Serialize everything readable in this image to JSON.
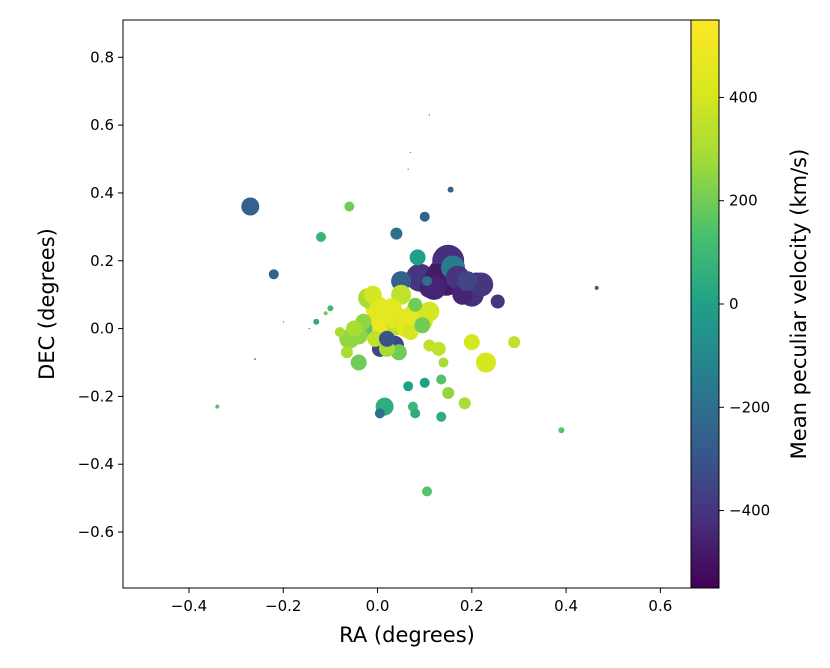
{
  "chart_data": {
    "type": "scatter",
    "title": "",
    "xlabel": "RA (degrees)",
    "ylabel": "DEC (degrees)",
    "xlim": [
      -0.54,
      0.665
    ],
    "ylim": [
      -0.765,
      0.91
    ],
    "xticks": [
      -0.4,
      -0.2,
      0.0,
      0.2,
      0.4,
      0.6
    ],
    "xtick_labels": [
      "−0.4",
      "−0.2",
      "0.0",
      "0.2",
      "0.4",
      "0.6"
    ],
    "yticks": [
      -0.6,
      -0.4,
      -0.2,
      0.0,
      0.2,
      0.4,
      0.6,
      0.8
    ],
    "ytick_labels": [
      "−0.6",
      "−0.4",
      "−0.2",
      "0.0",
      "0.2",
      "0.4",
      "0.6",
      "0.8"
    ],
    "grid": false,
    "colorbar": {
      "label": "Mean peculiar velocity (km/s)",
      "colormap": "viridis",
      "range": [
        -550,
        550
      ],
      "ticks": [
        -400,
        -200,
        0,
        200,
        400
      ],
      "tick_labels": [
        "−400",
        "−200",
        "0",
        "200",
        "400"
      ]
    },
    "series": [
      {
        "x": [
          -0.27,
          -0.22,
          -0.34,
          -0.26,
          -0.12,
          -0.06,
          -0.1,
          -0.11,
          -0.13,
          -0.08,
          -0.06,
          -0.065,
          -0.04,
          -0.03,
          -0.02,
          -0.01,
          0.0,
          0.005,
          0.01,
          0.02,
          0.03,
          0.035,
          0.04,
          0.05,
          0.06,
          0.07,
          0.08,
          0.085,
          0.09,
          0.1,
          0.11,
          0.12,
          0.13,
          0.14,
          0.145,
          0.15,
          0.16,
          0.17,
          0.18,
          0.19,
          0.2,
          0.21,
          0.22,
          0.23,
          0.255,
          0.29,
          0.1,
          0.04,
          0.105,
          0.155,
          0.465,
          0.065,
          0.1,
          0.135,
          0.075,
          0.08,
          0.005,
          0.015,
          0.135,
          0.15,
          0.185,
          0.105,
          0.39,
          0.11,
          0.13,
          0.14,
          0.2,
          0.045,
          0.035,
          0.02,
          0.0,
          0.05,
          0.08,
          0.095,
          0.11,
          -0.005,
          0.03,
          -0.05,
          0.055,
          0.06,
          0.02,
          -0.03,
          -0.04,
          0.01
        ],
        "y": [
          0.36,
          0.16,
          -0.23,
          -0.09,
          0.27,
          0.36,
          0.06,
          0.045,
          0.02,
          -0.01,
          -0.03,
          -0.07,
          -0.1,
          0.02,
          0.09,
          0.1,
          0.06,
          -0.06,
          0.0,
          0.02,
          0.04,
          -0.05,
          0.01,
          0.14,
          0.0,
          -0.01,
          0.07,
          0.21,
          0.15,
          0.02,
          0.12,
          0.12,
          0.15,
          0.16,
          0.15,
          0.2,
          0.18,
          0.15,
          0.1,
          0.14,
          0.1,
          0.13,
          0.13,
          -0.1,
          0.08,
          -0.04,
          0.33,
          0.28,
          0.14,
          0.41,
          0.12,
          -0.17,
          -0.16,
          -0.15,
          -0.23,
          -0.25,
          -0.25,
          -0.23,
          -0.26,
          -0.19,
          -0.22,
          -0.48,
          -0.3,
          -0.05,
          -0.06,
          -0.1,
          -0.04,
          -0.07,
          0.03,
          -0.06,
          0.06,
          0.1,
          0.05,
          0.01,
          0.05,
          -0.03,
          0.06,
          0.0,
          0.02,
          0.03,
          -0.03,
          0.0,
          -0.02,
          0.04
        ],
        "velocity": [
          -250,
          -250,
          150,
          50,
          80,
          200,
          100,
          200,
          50,
          300,
          250,
          300,
          200,
          250,
          300,
          400,
          450,
          -350,
          500,
          500,
          450,
          -350,
          350,
          -250,
          450,
          400,
          200,
          0,
          -400,
          400,
          -450,
          -450,
          -480,
          -500,
          -480,
          -420,
          -150,
          -400,
          -450,
          -350,
          -420,
          -430,
          -400,
          400,
          -400,
          350,
          -250,
          -200,
          -200,
          -250,
          -250,
          0,
          0,
          150,
          100,
          50,
          -200,
          50,
          50,
          250,
          300,
          150,
          150,
          350,
          350,
          300,
          400,
          200,
          450,
          300,
          450,
          350,
          450,
          200,
          400,
          350,
          450,
          300,
          400,
          450,
          -300,
          150,
          250,
          500
        ],
        "size": [
          9,
          5,
          2,
          1,
          5,
          5,
          3,
          2,
          3,
          5,
          10,
          6,
          8,
          8,
          10,
          9,
          8,
          8,
          14,
          14,
          12,
          10,
          10,
          10,
          9,
          8,
          7,
          8,
          14,
          8,
          10,
          12,
          14,
          16,
          18,
          16,
          12,
          12,
          10,
          10,
          12,
          12,
          12,
          10,
          7,
          6,
          5,
          6,
          5,
          3,
          2,
          5,
          5,
          5,
          5,
          5,
          5,
          9,
          5,
          6,
          6,
          5,
          3,
          6,
          7,
          5,
          8,
          8,
          10,
          8,
          12,
          10,
          10,
          8,
          10,
          8,
          10,
          8,
          10,
          10,
          8,
          9,
          9,
          14
        ]
      }
    ],
    "tiny_marks": {
      "x": [
        -0.2,
        -0.145,
        0.11,
        0.07,
        0.065
      ],
      "y": [
        0.02,
        0.0,
        0.63,
        0.52,
        0.47
      ]
    }
  }
}
